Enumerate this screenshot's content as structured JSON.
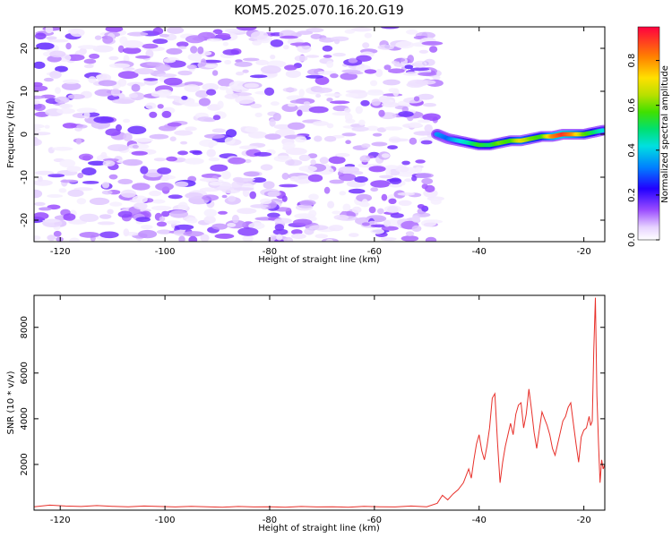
{
  "title": "KOM5.2025.070.16.20.G19",
  "chart_data": [
    {
      "type": "heatmap",
      "xlabel": "Height of straight line (km)",
      "ylabel": "Frequency (Hz)",
      "xlim": [
        -125,
        -16
      ],
      "ylim": [
        -25,
        25
      ],
      "xticks": [
        -120,
        -100,
        -80,
        -60,
        -40,
        -20
      ],
      "yticks": [
        -20,
        -10,
        0,
        10,
        20
      ],
      "xticklabels": [
        "-120",
        "-100",
        "-80",
        "-60",
        "-40",
        "-20"
      ],
      "yticklabels": [
        "-20",
        "-10",
        "0",
        "10",
        "20"
      ],
      "colorbar": {
        "label": "Normalized spectral amplitude",
        "range": [
          0,
          0.95
        ],
        "ticks": [
          0.0,
          0.2,
          0.4,
          0.6,
          0.8
        ],
        "ticklabels": [
          "0.0",
          "0.2",
          "0.4",
          "0.6",
          "0.8"
        ],
        "colormap": "rainbow"
      },
      "noise_region_x": [
        -125,
        -48
      ],
      "signal_track": {
        "x": [
          -48,
          -46,
          -44,
          -42,
          -40,
          -38,
          -36,
          -34,
          -32,
          -30,
          -28,
          -26,
          -24,
          -22,
          -20,
          -18,
          -16
        ],
        "frequency_hz": [
          0,
          -1,
          -1.5,
          -2,
          -2.5,
          -2.5,
          -2,
          -1.5,
          -1.5,
          -1,
          -0.5,
          -0.5,
          0,
          0,
          0,
          0.5,
          1
        ],
        "amplitude": [
          0.35,
          0.3,
          0.4,
          0.45,
          0.55,
          0.5,
          0.6,
          0.55,
          0.7,
          0.6,
          0.55,
          0.8,
          0.9,
          0.8,
          0.6,
          0.5,
          0.4
        ]
      }
    },
    {
      "type": "line",
      "xlabel": "Height of straight line (km)",
      "ylabel": "SNR (10 * v/v)",
      "xlim": [
        -125,
        -16
      ],
      "ylim": [
        0,
        9400
      ],
      "xticks": [
        -120,
        -100,
        -80,
        -60,
        -40,
        -20
      ],
      "yticks": [
        2000,
        4000,
        6000,
        8000
      ],
      "xticklabels": [
        "-120",
        "-100",
        "-80",
        "-60",
        "-40",
        "-20"
      ],
      "yticklabels": [
        "2000",
        "4000",
        "6000",
        "8000"
      ],
      "series": [
        {
          "color": "#e8302a",
          "x": [
            -125,
            -122,
            -119,
            -116,
            -113,
            -110,
            -107,
            -104,
            -101,
            -98,
            -95,
            -92,
            -89,
            -86,
            -83,
            -80,
            -77,
            -74,
            -71,
            -68,
            -65,
            -62,
            -59,
            -56,
            -53,
            -50,
            -48,
            -47,
            -46,
            -45,
            -44,
            -43,
            -42,
            -41.5,
            -41,
            -40.5,
            -40,
            -39.5,
            -39,
            -38.5,
            -38,
            -37.5,
            -37,
            -36.5,
            -36,
            -35.5,
            -35,
            -34,
            -33.5,
            -33,
            -32.5,
            -32,
            -31.5,
            -31,
            -30.5,
            -30,
            -29.5,
            -29,
            -28.5,
            -28,
            -27.5,
            -27,
            -26.5,
            -26,
            -25.5,
            -25,
            -24.5,
            -24,
            -23.5,
            -23,
            -22.5,
            -22,
            -21.5,
            -21,
            -20.5,
            -20,
            -19.5,
            -19,
            -18.7,
            -18.4,
            -18.1,
            -17.8,
            -17.5,
            -17.2,
            -16.9,
            -16.6,
            -16.3,
            -16
          ],
          "y": [
            150,
            220,
            180,
            160,
            200,
            170,
            150,
            180,
            160,
            140,
            170,
            150,
            130,
            160,
            140,
            150,
            130,
            160,
            140,
            150,
            130,
            170,
            150,
            140,
            180,
            150,
            300,
            650,
            450,
            700,
            900,
            1200,
            1800,
            1400,
            2200,
            2900,
            3300,
            2600,
            2200,
            2800,
            3600,
            4900,
            5100,
            3000,
            1200,
            2100,
            2800,
            3800,
            3300,
            4200,
            4600,
            4700,
            3600,
            4200,
            5300,
            4400,
            3400,
            2700,
            3500,
            4300,
            4000,
            3700,
            3300,
            2700,
            2400,
            2900,
            3400,
            3900,
            4100,
            4500,
            4700,
            3800,
            2900,
            2100,
            3200,
            3500,
            3600,
            4100,
            3700,
            3900,
            7000,
            9300,
            5000,
            2900,
            1200,
            2200,
            1800,
            2000
          ]
        }
      ]
    }
  ]
}
